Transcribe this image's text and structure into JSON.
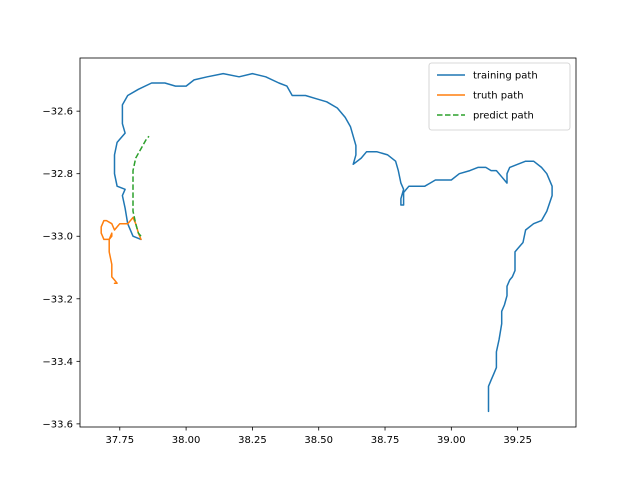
{
  "chart_data": {
    "type": "line",
    "title": "",
    "xlabel": "",
    "ylabel": "",
    "xlim": [
      37.6,
      39.47
    ],
    "ylim": [
      -33.61,
      -32.43
    ],
    "xticks": [
      37.75,
      38.0,
      38.25,
      38.5,
      38.75,
      39.0,
      39.25
    ],
    "xtick_labels": [
      "37.75",
      "38.00",
      "38.25",
      "38.50",
      "38.75",
      "39.00",
      "39.25"
    ],
    "yticks": [
      -32.6,
      -32.8,
      -33.0,
      -33.2,
      -33.4,
      -33.6
    ],
    "ytick_labels": [
      "−32.6",
      "−32.8",
      "−33.0",
      "−33.2",
      "−33.4",
      "−33.6"
    ],
    "grid": false,
    "legend_position": "upper-right",
    "series": [
      {
        "name": "training path",
        "color": "#1f77b4",
        "style": "solid",
        "points": [
          [
            37.83,
            -33.01
          ],
          [
            37.8,
            -33.0
          ],
          [
            37.78,
            -32.96
          ],
          [
            37.77,
            -32.91
          ],
          [
            37.76,
            -32.87
          ],
          [
            37.77,
            -32.85
          ],
          [
            37.74,
            -32.84
          ],
          [
            37.73,
            -32.8
          ],
          [
            37.73,
            -32.74
          ],
          [
            37.74,
            -32.7
          ],
          [
            37.77,
            -32.67
          ],
          [
            37.76,
            -32.64
          ],
          [
            37.76,
            -32.58
          ],
          [
            37.78,
            -32.55
          ],
          [
            37.82,
            -32.53
          ],
          [
            37.87,
            -32.51
          ],
          [
            37.92,
            -32.51
          ],
          [
            37.96,
            -32.52
          ],
          [
            38.0,
            -32.52
          ],
          [
            38.03,
            -32.5
          ],
          [
            38.08,
            -32.49
          ],
          [
            38.14,
            -32.48
          ],
          [
            38.2,
            -32.49
          ],
          [
            38.25,
            -32.48
          ],
          [
            38.3,
            -32.49
          ],
          [
            38.35,
            -32.51
          ],
          [
            38.38,
            -32.52
          ],
          [
            38.4,
            -32.55
          ],
          [
            38.45,
            -32.55
          ],
          [
            38.49,
            -32.56
          ],
          [
            38.53,
            -32.57
          ],
          [
            38.57,
            -32.59
          ],
          [
            38.6,
            -32.62
          ],
          [
            38.62,
            -32.65
          ],
          [
            38.63,
            -32.68
          ],
          [
            38.64,
            -32.71
          ],
          [
            38.64,
            -32.74
          ],
          [
            38.63,
            -32.77
          ],
          [
            38.66,
            -32.75
          ],
          [
            38.68,
            -32.73
          ],
          [
            38.72,
            -32.73
          ],
          [
            38.76,
            -32.74
          ],
          [
            38.79,
            -32.76
          ],
          [
            38.8,
            -32.79
          ],
          [
            38.81,
            -32.83
          ],
          [
            38.82,
            -32.85
          ],
          [
            38.81,
            -32.88
          ],
          [
            38.81,
            -32.9
          ],
          [
            38.82,
            -32.9
          ],
          [
            38.82,
            -32.86
          ],
          [
            38.84,
            -32.84
          ],
          [
            38.87,
            -32.84
          ],
          [
            38.9,
            -32.84
          ],
          [
            38.92,
            -32.83
          ],
          [
            38.94,
            -32.82
          ],
          [
            38.96,
            -32.82
          ],
          [
            39.0,
            -32.82
          ],
          [
            39.03,
            -32.8
          ],
          [
            39.07,
            -32.79
          ],
          [
            39.1,
            -32.78
          ],
          [
            39.13,
            -32.78
          ],
          [
            39.15,
            -32.79
          ],
          [
            39.17,
            -32.79
          ],
          [
            39.19,
            -32.81
          ],
          [
            39.2,
            -32.82
          ],
          [
            39.21,
            -32.83
          ],
          [
            39.21,
            -32.8
          ],
          [
            39.22,
            -32.78
          ],
          [
            39.25,
            -32.77
          ],
          [
            39.28,
            -32.76
          ],
          [
            39.31,
            -32.76
          ],
          [
            39.34,
            -32.78
          ],
          [
            39.36,
            -32.8
          ],
          [
            39.38,
            -32.84
          ],
          [
            39.38,
            -32.87
          ],
          [
            39.36,
            -32.92
          ],
          [
            39.34,
            -32.95
          ],
          [
            39.31,
            -32.96
          ],
          [
            39.28,
            -32.98
          ],
          [
            39.27,
            -33.02
          ],
          [
            39.25,
            -33.04
          ],
          [
            39.24,
            -33.05
          ],
          [
            39.24,
            -33.09
          ],
          [
            39.24,
            -33.11
          ],
          [
            39.23,
            -33.13
          ],
          [
            39.22,
            -33.14
          ],
          [
            39.21,
            -33.16
          ],
          [
            39.21,
            -33.19
          ],
          [
            39.2,
            -33.22
          ],
          [
            39.19,
            -33.24
          ],
          [
            39.19,
            -33.28
          ],
          [
            39.18,
            -33.33
          ],
          [
            39.17,
            -33.37
          ],
          [
            39.17,
            -33.42
          ],
          [
            39.16,
            -33.44
          ],
          [
            39.15,
            -33.46
          ],
          [
            39.14,
            -33.48
          ],
          [
            39.14,
            -33.51
          ],
          [
            39.14,
            -33.53
          ],
          [
            39.14,
            -33.56
          ]
        ]
      },
      {
        "name": "truth path",
        "color": "#ff7f0e",
        "style": "solid",
        "points": [
          [
            37.83,
            -33.01
          ],
          [
            37.82,
            -32.99
          ],
          [
            37.81,
            -32.96
          ],
          [
            37.8,
            -32.94
          ],
          [
            37.79,
            -32.95
          ],
          [
            37.78,
            -32.96
          ],
          [
            37.77,
            -32.96
          ],
          [
            37.75,
            -32.96
          ],
          [
            37.74,
            -32.97
          ],
          [
            37.73,
            -32.98
          ],
          [
            37.72,
            -32.96
          ],
          [
            37.7,
            -32.95
          ],
          [
            37.69,
            -32.95
          ],
          [
            37.68,
            -32.97
          ],
          [
            37.68,
            -32.99
          ],
          [
            37.69,
            -33.01
          ],
          [
            37.7,
            -33.01
          ],
          [
            37.71,
            -33.01
          ],
          [
            37.72,
            -33.0
          ],
          [
            37.72,
            -32.99
          ],
          [
            37.71,
            -33.01
          ],
          [
            37.71,
            -33.05
          ],
          [
            37.72,
            -33.09
          ],
          [
            37.72,
            -33.13
          ],
          [
            37.73,
            -33.14
          ],
          [
            37.74,
            -33.15
          ],
          [
            37.73,
            -33.15
          ]
        ]
      },
      {
        "name": "predict path",
        "color": "#2ca02c",
        "style": "dashed",
        "points": [
          [
            37.83,
            -33.0
          ],
          [
            37.82,
            -32.99
          ],
          [
            37.81,
            -32.96
          ],
          [
            37.8,
            -32.92
          ],
          [
            37.8,
            -32.88
          ],
          [
            37.8,
            -32.83
          ],
          [
            37.8,
            -32.79
          ],
          [
            37.81,
            -32.75
          ],
          [
            37.83,
            -32.72
          ],
          [
            37.85,
            -32.69
          ],
          [
            37.86,
            -32.68
          ]
        ]
      }
    ]
  }
}
